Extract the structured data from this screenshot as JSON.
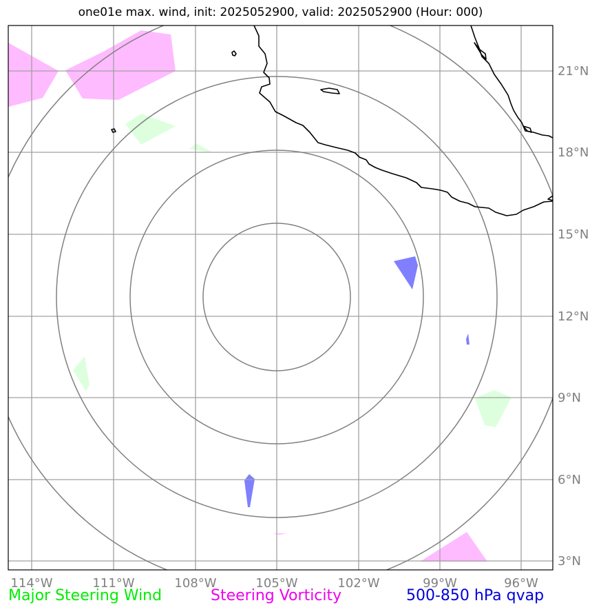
{
  "title": "one01e max. wind, init: 2025052900, valid: 2025052900 (Hour: 000)",
  "lon_labels": [
    "114°W",
    "111°W",
    "108°W",
    "105°W",
    "102°W",
    "99°W",
    "96°W"
  ],
  "lat_labels": [
    "21°N",
    "18°N",
    "15°N",
    "12°N",
    "9°N",
    "6°N",
    "3°N"
  ],
  "legend": {
    "major_steering_wind": "Major Steering Wind",
    "steering_vorticity": "Steering Vorticity",
    "qvap": "500-850 hPa qvap"
  },
  "colors": {
    "grid": "#a0a0a0",
    "range_rings": "#808080",
    "coastline": "#000000",
    "steering_wind_fill": "#ddffdd",
    "steering_vorticity_fill": "#ffbbff",
    "qvap_fill": "#7f7fff",
    "legend_green": "#00ee00",
    "legend_magenta": "#ee00ee",
    "legend_blue": "#0000dd"
  }
}
